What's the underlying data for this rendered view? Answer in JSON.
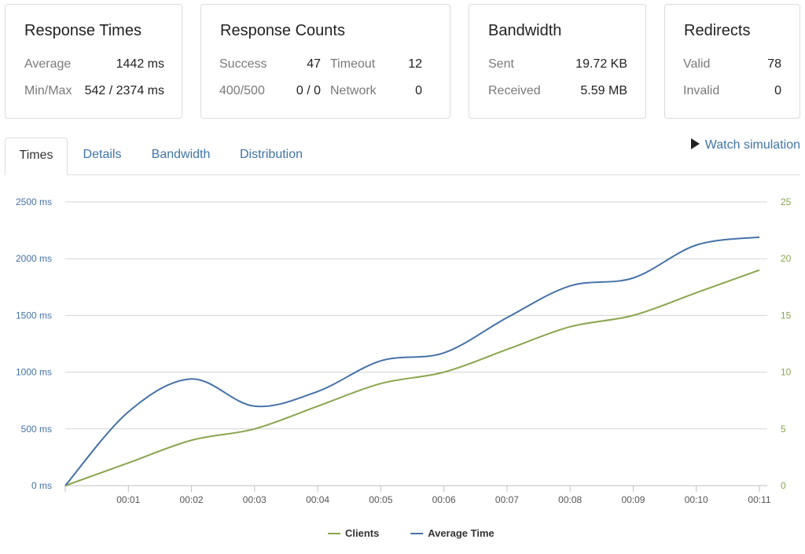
{
  "stats": {
    "response_times": {
      "title": "Response Times",
      "rows": [
        {
          "label": "Average",
          "value": "1442 ms"
        },
        {
          "label": "Min/Max",
          "value": "542 / 2374 ms"
        }
      ]
    },
    "response_counts": {
      "title": "Response Counts",
      "rows": [
        {
          "label": "Success",
          "value": "47",
          "label2": "Timeout",
          "value2": "12"
        },
        {
          "label": "400/500",
          "value": "0 / 0",
          "label2": "Network",
          "value2": "0"
        }
      ]
    },
    "bandwidth": {
      "title": "Bandwidth",
      "rows": [
        {
          "label": "Sent",
          "value": "19.72 KB"
        },
        {
          "label": "Received",
          "value": "5.59 MB"
        }
      ]
    },
    "redirects": {
      "title": "Redirects",
      "rows": [
        {
          "label": "Valid",
          "value": "78"
        },
        {
          "label": "Invalid",
          "value": "0"
        }
      ]
    }
  },
  "tabs": [
    {
      "label": "Times",
      "active": true
    },
    {
      "label": "Details",
      "active": false
    },
    {
      "label": "Bandwidth",
      "active": false
    },
    {
      "label": "Distribution",
      "active": false
    }
  ],
  "watch_simulation": {
    "label": "Watch simulation",
    "icon": "play-icon"
  },
  "colors": {
    "accent": "#3f74a8",
    "avg_time": "#4572a7",
    "clients": "#89a54e"
  },
  "chart_data": {
    "type": "line",
    "x": [
      "00:00",
      "00:01",
      "00:02",
      "00:03",
      "00:04",
      "00:05",
      "00:06",
      "00:07",
      "00:08",
      "00:09",
      "00:10",
      "00:11"
    ],
    "x_tick_labels": [
      "00:01",
      "00:02",
      "00:03",
      "00:04",
      "00:05",
      "00:06",
      "00:07",
      "00:08",
      "00:09",
      "00:10",
      "00:11"
    ],
    "y_left": {
      "ticks": [
        "0 ms",
        "500 ms",
        "1000 ms",
        "1500 ms",
        "2000 ms",
        "2500 ms"
      ],
      "range": [
        0,
        2500
      ]
    },
    "y_right": {
      "ticks": [
        "0",
        "5",
        "10",
        "15",
        "20",
        "25"
      ],
      "range": [
        0,
        25
      ]
    },
    "series": [
      {
        "name": "Clients",
        "axis": "right",
        "values": [
          0,
          2,
          4,
          5,
          7,
          9,
          10,
          12,
          14,
          15,
          17,
          19
        ]
      },
      {
        "name": "Average Time",
        "axis": "left",
        "values": [
          0,
          650,
          940,
          700,
          830,
          1100,
          1170,
          1480,
          1760,
          1830,
          2120,
          2190
        ]
      }
    ],
    "legend_position": "bottom-center",
    "grid": true
  }
}
